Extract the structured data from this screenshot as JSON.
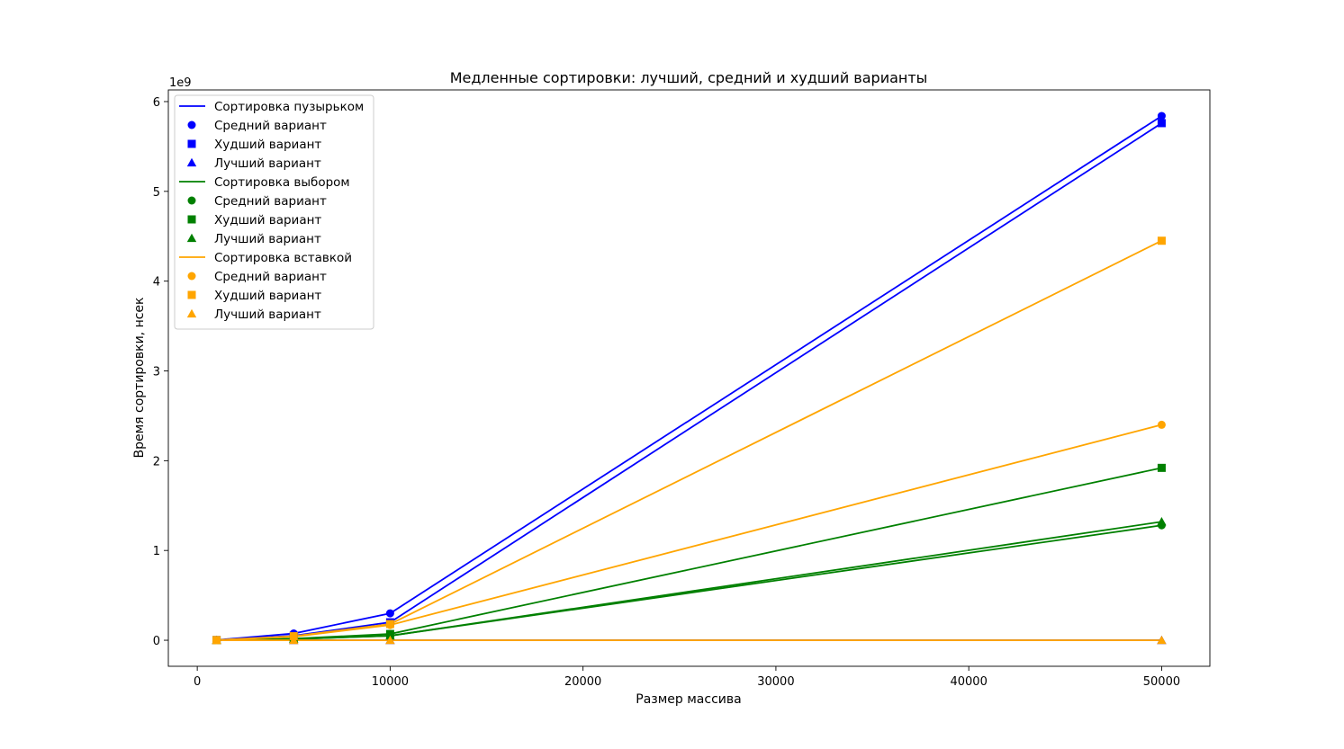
{
  "chart_data": {
    "type": "line",
    "title": "Медленные сортировки: лучший, средний и худший варианты",
    "xlabel": "Размер массива",
    "ylabel": "Время сортировки, нсек",
    "y_multiplier_label": "1e9",
    "x": [
      1000,
      5000,
      10000,
      50000
    ],
    "xlim": [
      -1500,
      52500
    ],
    "ylim": [
      -0.29,
      6.13
    ],
    "xticks": [
      0,
      10000,
      20000,
      30000,
      40000,
      50000
    ],
    "yticks": [
      0,
      1,
      2,
      3,
      4,
      5,
      6
    ],
    "grid": false,
    "legend_position": "top-left",
    "algorithms": [
      {
        "name": "Сортировка пузырьком",
        "color": "#0000ff",
        "cases": [
          {
            "name": "Средний вариант",
            "marker": "circle",
            "values": [
              0.003,
              0.075,
              0.3,
              5.84
            ]
          },
          {
            "name": "Худший вариант",
            "marker": "square",
            "values": [
              0.002,
              0.05,
              0.2,
              5.76
            ]
          },
          {
            "name": "Лучший вариант",
            "marker": "triangle",
            "values": [
              0.0,
              0.0,
              0.0,
              0.0
            ]
          }
        ]
      },
      {
        "name": "Сортировка выбором",
        "color": "#008000",
        "cases": [
          {
            "name": "Средний вариант",
            "marker": "circle",
            "values": [
              0.001,
              0.013,
              0.05,
              1.28
            ]
          },
          {
            "name": "Худший вариант",
            "marker": "square",
            "values": [
              0.001,
              0.018,
              0.07,
              1.92
            ]
          },
          {
            "name": "Лучший вариант",
            "marker": "triangle",
            "values": [
              0.001,
              0.013,
              0.05,
              1.32
            ]
          }
        ]
      },
      {
        "name": "Сортировка вставкой",
        "color": "#ffa500",
        "cases": [
          {
            "name": "Средний вариант",
            "marker": "circle",
            "values": [
              0.002,
              0.04,
              0.17,
              2.4
            ]
          },
          {
            "name": "Худший вариант",
            "marker": "square",
            "values": [
              0.002,
              0.045,
              0.18,
              4.45
            ]
          },
          {
            "name": "Лучший вариант",
            "marker": "triangle",
            "values": [
              0.0,
              0.0,
              0.0,
              0.0
            ]
          }
        ]
      }
    ]
  }
}
